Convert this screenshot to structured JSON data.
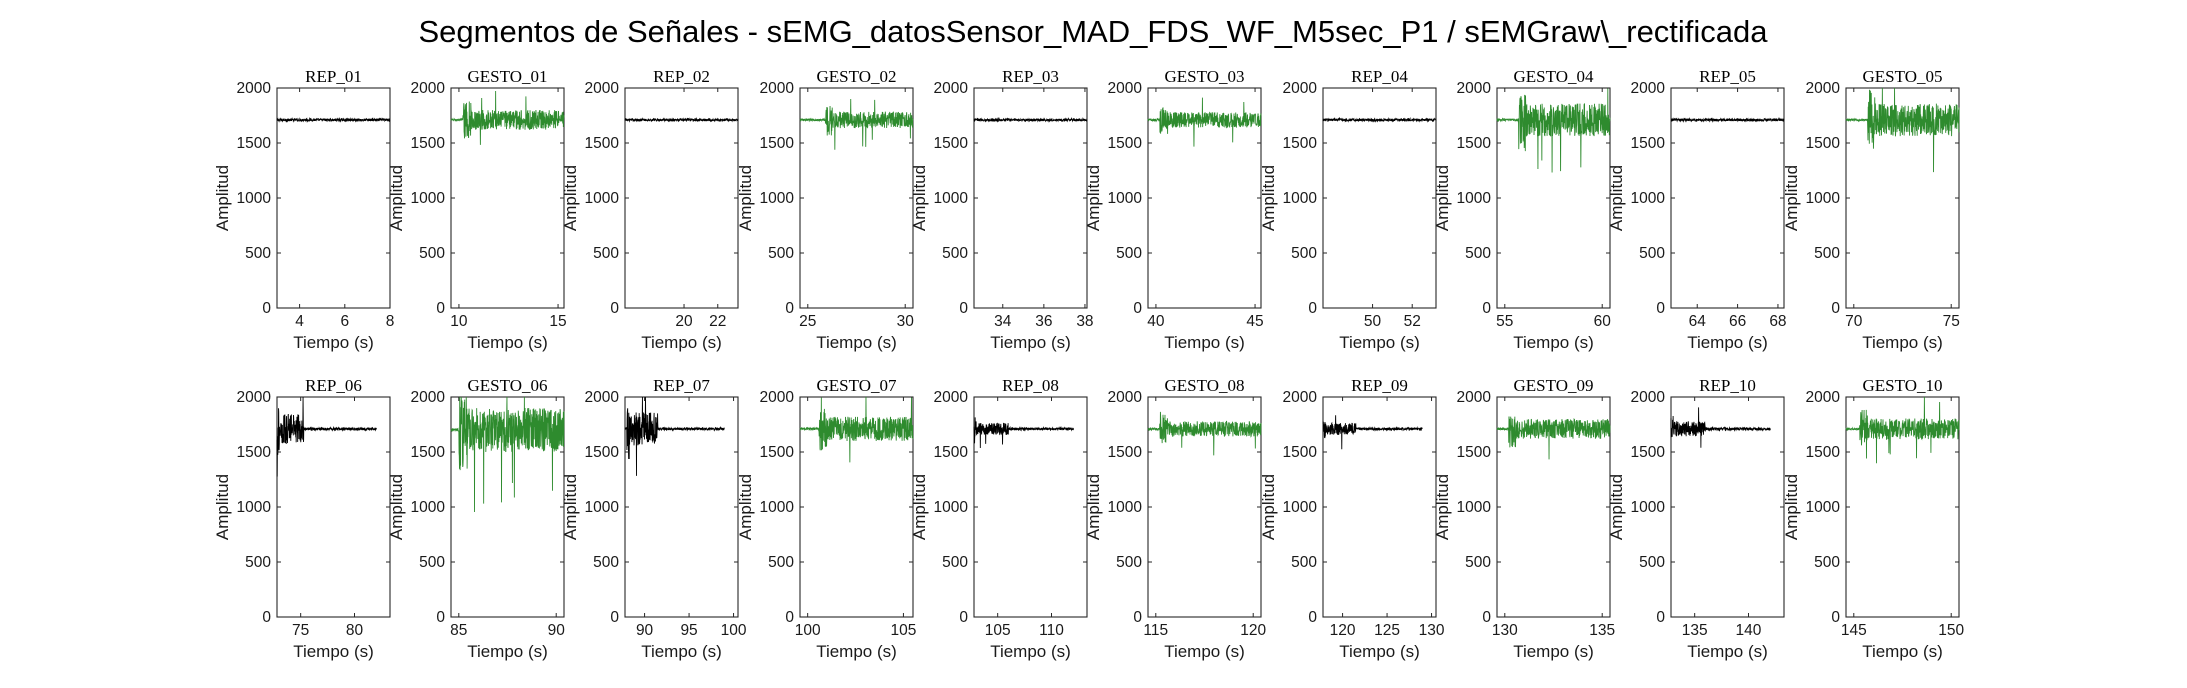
{
  "figure": {
    "title": "Segmentos de Señales - sEMG_datosSensor_MAD_FDS_WF_M5sec_P1 / sEMGraw\\_rectificada"
  },
  "colors": {
    "rep": "#000000",
    "gesto": "#2e8b2e"
  },
  "chart_data": [
    {
      "type": "line",
      "title": "REP_01",
      "xlabel": "Tiempo (s)",
      "ylabel": "Amplitud",
      "xlim": [
        3,
        8
      ],
      "ylim": [
        0,
        2000
      ],
      "xticks": [
        4,
        6,
        8
      ],
      "yticks": [
        0,
        500,
        1000,
        1500,
        2000
      ],
      "signal": {
        "baseline": 1710,
        "burst_start": 0,
        "burst_end": 0,
        "burst_amplitude": 0,
        "noise_amplitude": 12
      }
    },
    {
      "type": "line",
      "title": "GESTO_01",
      "xlabel": "Tiempo (s)",
      "ylabel": "Amplitud",
      "xlim": [
        9.6,
        15.3
      ],
      "ylim": [
        0,
        2000
      ],
      "xticks": [
        10,
        15
      ],
      "yticks": [
        0,
        500,
        1000,
        1500,
        2000
      ],
      "signal": {
        "baseline": 1710,
        "burst_start": 10.2,
        "burst_end": 15.3,
        "burst_amplitude": 90,
        "noise_amplitude": 10
      }
    },
    {
      "type": "line",
      "title": "REP_02",
      "xlabel": "Tiempo (s)",
      "ylabel": "Amplitud",
      "xlim": [
        16.5,
        23.2
      ],
      "ylim": [
        0,
        2000
      ],
      "xticks": [
        20,
        22
      ],
      "yticks": [
        0,
        500,
        1000,
        1500,
        2000
      ],
      "signal": {
        "baseline": 1710,
        "burst_start": 0,
        "burst_end": 0,
        "burst_amplitude": 0,
        "noise_amplitude": 12
      }
    },
    {
      "type": "line",
      "title": "GESTO_02",
      "xlabel": "Tiempo (s)",
      "ylabel": "Amplitud",
      "xlim": [
        24.6,
        30.4
      ],
      "ylim": [
        0,
        2000
      ],
      "xticks": [
        25,
        30
      ],
      "yticks": [
        0,
        500,
        1000,
        1500,
        2000
      ],
      "signal": {
        "baseline": 1710,
        "burst_start": 25.9,
        "burst_end": 30.4,
        "burst_amplitude": 75,
        "noise_amplitude": 10
      }
    },
    {
      "type": "line",
      "title": "REP_03",
      "xlabel": "Tiempo (s)",
      "ylabel": "Amplitud",
      "xlim": [
        32.6,
        38.1
      ],
      "ylim": [
        0,
        2000
      ],
      "xticks": [
        34,
        36,
        38
      ],
      "yticks": [
        0,
        500,
        1000,
        1500,
        2000
      ],
      "signal": {
        "baseline": 1710,
        "burst_start": 0,
        "burst_end": 0,
        "burst_amplitude": 0,
        "noise_amplitude": 12
      }
    },
    {
      "type": "line",
      "title": "GESTO_03",
      "xlabel": "Tiempo (s)",
      "ylabel": "Amplitud",
      "xlim": [
        39.6,
        45.3
      ],
      "ylim": [
        0,
        2000
      ],
      "xticks": [
        40,
        45
      ],
      "yticks": [
        0,
        500,
        1000,
        1500,
        2000
      ],
      "signal": {
        "baseline": 1710,
        "burst_start": 40.2,
        "burst_end": 45.3,
        "burst_amplitude": 70,
        "noise_amplitude": 10
      }
    },
    {
      "type": "line",
      "title": "REP_04",
      "xlabel": "Tiempo (s)",
      "ylabel": "Amplitud",
      "xlim": [
        47.5,
        53.2
      ],
      "ylim": [
        0,
        2000
      ],
      "xticks": [
        50,
        52
      ],
      "yticks": [
        0,
        500,
        1000,
        1500,
        2000
      ],
      "signal": {
        "baseline": 1710,
        "burst_start": 0,
        "burst_end": 0,
        "burst_amplitude": 0,
        "noise_amplitude": 12
      }
    },
    {
      "type": "line",
      "title": "GESTO_04",
      "xlabel": "Tiempo (s)",
      "ylabel": "Amplitud",
      "xlim": [
        54.6,
        60.4
      ],
      "ylim": [
        0,
        2000
      ],
      "xticks": [
        55,
        60
      ],
      "yticks": [
        0,
        500,
        1000,
        1500,
        2000
      ],
      "signal": {
        "baseline": 1710,
        "burst_start": 55.7,
        "burst_end": 60.4,
        "burst_amplitude": 150,
        "noise_amplitude": 10
      }
    },
    {
      "type": "line",
      "title": "REP_05",
      "xlabel": "Tiempo (s)",
      "ylabel": "Amplitud",
      "xlim": [
        62.7,
        68.3
      ],
      "ylim": [
        0,
        2000
      ],
      "xticks": [
        64,
        66,
        68
      ],
      "yticks": [
        0,
        500,
        1000,
        1500,
        2000
      ],
      "signal": {
        "baseline": 1710,
        "burst_start": 0,
        "burst_end": 0,
        "burst_amplitude": 0,
        "noise_amplitude": 12
      }
    },
    {
      "type": "line",
      "title": "GESTO_05",
      "xlabel": "Tiempo (s)",
      "ylabel": "Amplitud",
      "xlim": [
        69.6,
        75.4
      ],
      "ylim": [
        0,
        2000
      ],
      "xticks": [
        70,
        75
      ],
      "yticks": [
        0,
        500,
        1000,
        1500,
        2000
      ],
      "signal": {
        "baseline": 1710,
        "burst_start": 70.7,
        "burst_end": 75.4,
        "burst_amplitude": 150,
        "noise_amplitude": 10
      }
    },
    {
      "type": "line",
      "title": "REP_06",
      "xlabel": "Tiempo (s)",
      "ylabel": "Amplitud",
      "xlim": [
        72.8,
        83.3
      ],
      "ylim": [
        0,
        2000
      ],
      "xticks": [
        75,
        80
      ],
      "yticks": [
        0,
        500,
        1000,
        1500,
        2000
      ],
      "signal": {
        "baseline": 1710,
        "burst_start": 72.8,
        "burst_end": 75.3,
        "burst_amplitude": 140,
        "noise_amplitude": 12
      }
    },
    {
      "type": "line",
      "title": "GESTO_06",
      "xlabel": "Tiempo (s)",
      "ylabel": "Amplitud",
      "xlim": [
        84.6,
        90.4
      ],
      "ylim": [
        0,
        2000
      ],
      "xticks": [
        85,
        90
      ],
      "yticks": [
        0,
        500,
        1000,
        1500,
        2000
      ],
      "signal": {
        "baseline": 1700,
        "burst_start": 85.0,
        "burst_end": 90.4,
        "burst_amplitude": 200,
        "noise_amplitude": 12
      }
    },
    {
      "type": "line",
      "title": "REP_07",
      "xlabel": "Tiempo (s)",
      "ylabel": "Amplitud",
      "xlim": [
        87.8,
        100.5
      ],
      "ylim": [
        0,
        2000
      ],
      "xticks": [
        90,
        95,
        100
      ],
      "yticks": [
        0,
        500,
        1000,
        1500,
        2000
      ],
      "signal": {
        "baseline": 1710,
        "burst_start": 88.0,
        "burst_end": 91.5,
        "burst_amplitude": 150,
        "noise_amplitude": 12
      }
    },
    {
      "type": "line",
      "title": "GESTO_07",
      "xlabel": "Tiempo (s)",
      "ylabel": "Amplitud",
      "xlim": [
        99.6,
        105.5
      ],
      "ylim": [
        0,
        2000
      ],
      "xticks": [
        100,
        105
      ],
      "yticks": [
        0,
        500,
        1000,
        1500,
        2000
      ],
      "signal": {
        "baseline": 1710,
        "burst_start": 100.6,
        "burst_end": 105.5,
        "burst_amplitude": 110,
        "noise_amplitude": 10
      }
    },
    {
      "type": "line",
      "title": "REP_08",
      "xlabel": "Tiempo (s)",
      "ylabel": "Amplitud",
      "xlim": [
        102.8,
        113.3
      ],
      "ylim": [
        0,
        2000
      ],
      "xticks": [
        105,
        110
      ],
      "yticks": [
        0,
        500,
        1000,
        1500,
        2000
      ],
      "signal": {
        "baseline": 1710,
        "burst_start": 102.8,
        "burst_end": 106.0,
        "burst_amplitude": 55,
        "noise_amplitude": 12
      }
    },
    {
      "type": "line",
      "title": "GESTO_08",
      "xlabel": "Tiempo (s)",
      "ylabel": "Amplitud",
      "xlim": [
        114.6,
        120.4
      ],
      "ylim": [
        0,
        2000
      ],
      "xticks": [
        115,
        120
      ],
      "yticks": [
        0,
        500,
        1000,
        1500,
        2000
      ],
      "signal": {
        "baseline": 1710,
        "burst_start": 115.2,
        "burst_end": 120.4,
        "burst_amplitude": 70,
        "noise_amplitude": 10
      }
    },
    {
      "type": "line",
      "title": "REP_09",
      "xlabel": "Tiempo (s)",
      "ylabel": "Amplitud",
      "xlim": [
        117.8,
        130.5
      ],
      "ylim": [
        0,
        2000
      ],
      "xticks": [
        120,
        125,
        130
      ],
      "yticks": [
        0,
        500,
        1000,
        1500,
        2000
      ],
      "signal": {
        "baseline": 1710,
        "burst_start": 117.8,
        "burst_end": 121.5,
        "burst_amplitude": 55,
        "noise_amplitude": 12
      }
    },
    {
      "type": "line",
      "title": "GESTO_09",
      "xlabel": "Tiempo (s)",
      "ylabel": "Amplitud",
      "xlim": [
        129.6,
        135.4
      ],
      "ylim": [
        0,
        2000
      ],
      "xticks": [
        130,
        135
      ],
      "yticks": [
        0,
        500,
        1000,
        1500,
        2000
      ],
      "signal": {
        "baseline": 1710,
        "burst_start": 130.2,
        "burst_end": 135.4,
        "burst_amplitude": 90,
        "noise_amplitude": 10
      }
    },
    {
      "type": "line",
      "title": "REP_10",
      "xlabel": "Tiempo (s)",
      "ylabel": "Amplitud",
      "xlim": [
        132.8,
        143.3
      ],
      "ylim": [
        0,
        2000
      ],
      "xticks": [
        135,
        140
      ],
      "yticks": [
        0,
        500,
        1000,
        1500,
        2000
      ],
      "signal": {
        "baseline": 1710,
        "burst_start": 132.8,
        "burst_end": 136.0,
        "burst_amplitude": 70,
        "noise_amplitude": 12
      }
    },
    {
      "type": "line",
      "title": "GESTO_10",
      "xlabel": "Tiempo (s)",
      "ylabel": "Amplitud",
      "xlim": [
        144.6,
        150.4
      ],
      "ylim": [
        0,
        2000
      ],
      "xticks": [
        145,
        150
      ],
      "yticks": [
        0,
        500,
        1000,
        1500,
        2000
      ],
      "signal": {
        "baseline": 1710,
        "burst_start": 145.3,
        "burst_end": 150.4,
        "burst_amplitude": 95,
        "noise_amplitude": 10
      }
    }
  ]
}
